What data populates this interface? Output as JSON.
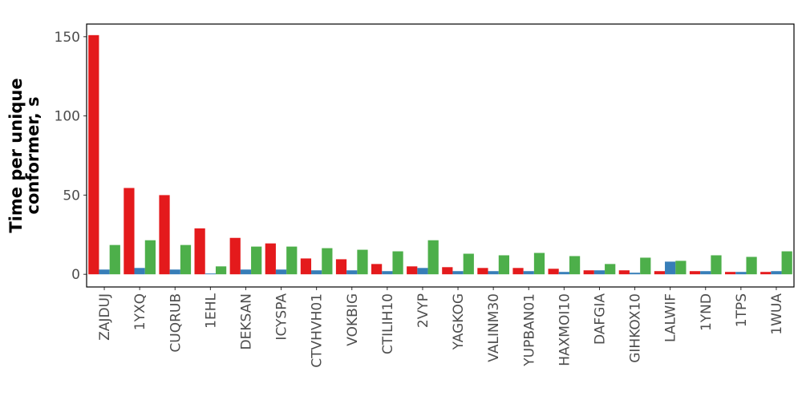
{
  "chart_data": {
    "type": "bar",
    "title": "",
    "xlabel": "",
    "ylabel_lines": [
      "Time per unique",
      "conformer, s"
    ],
    "ylim": [
      -8,
      158
    ],
    "yticks": [
      0,
      50,
      100,
      150
    ],
    "grid": false,
    "categories": [
      "ZAJDUJ",
      "1YXQ",
      "CUQRUB",
      "1EHL",
      "DEKSAN",
      "ICYSPA",
      "CTVHVH01",
      "VOKBIG",
      "CTILIH10",
      "2VYP",
      "YAGKOG",
      "VALINM30",
      "YUPBAN01",
      "HAXMOI10",
      "DAFGIA",
      "GIHKOX10",
      "LALWIF",
      "1YND",
      "1TPS",
      "1WUA"
    ],
    "series": [
      {
        "color": "#e41a1c",
        "values": [
          151,
          54.5,
          50,
          29,
          23,
          19.5,
          10,
          9.5,
          6.5,
          5,
          4.5,
          4,
          4,
          3.5,
          2.5,
          2.5,
          2,
          2,
          1.5,
          1.5
        ]
      },
      {
        "color": "#377eb8",
        "values": [
          3,
          4,
          3,
          0.5,
          3,
          3,
          2.5,
          2.5,
          2,
          4,
          2,
          2,
          2,
          1.5,
          2.5,
          1,
          8,
          2,
          1.5,
          2
        ]
      },
      {
        "color": "#4daf4a",
        "values": [
          18.5,
          21.5,
          18.5,
          5,
          17.5,
          17.5,
          16.5,
          15.5,
          14.5,
          21.5,
          13,
          12,
          13.5,
          11.5,
          6.5,
          10.5,
          8.5,
          12,
          11,
          14.5
        ]
      }
    ]
  }
}
